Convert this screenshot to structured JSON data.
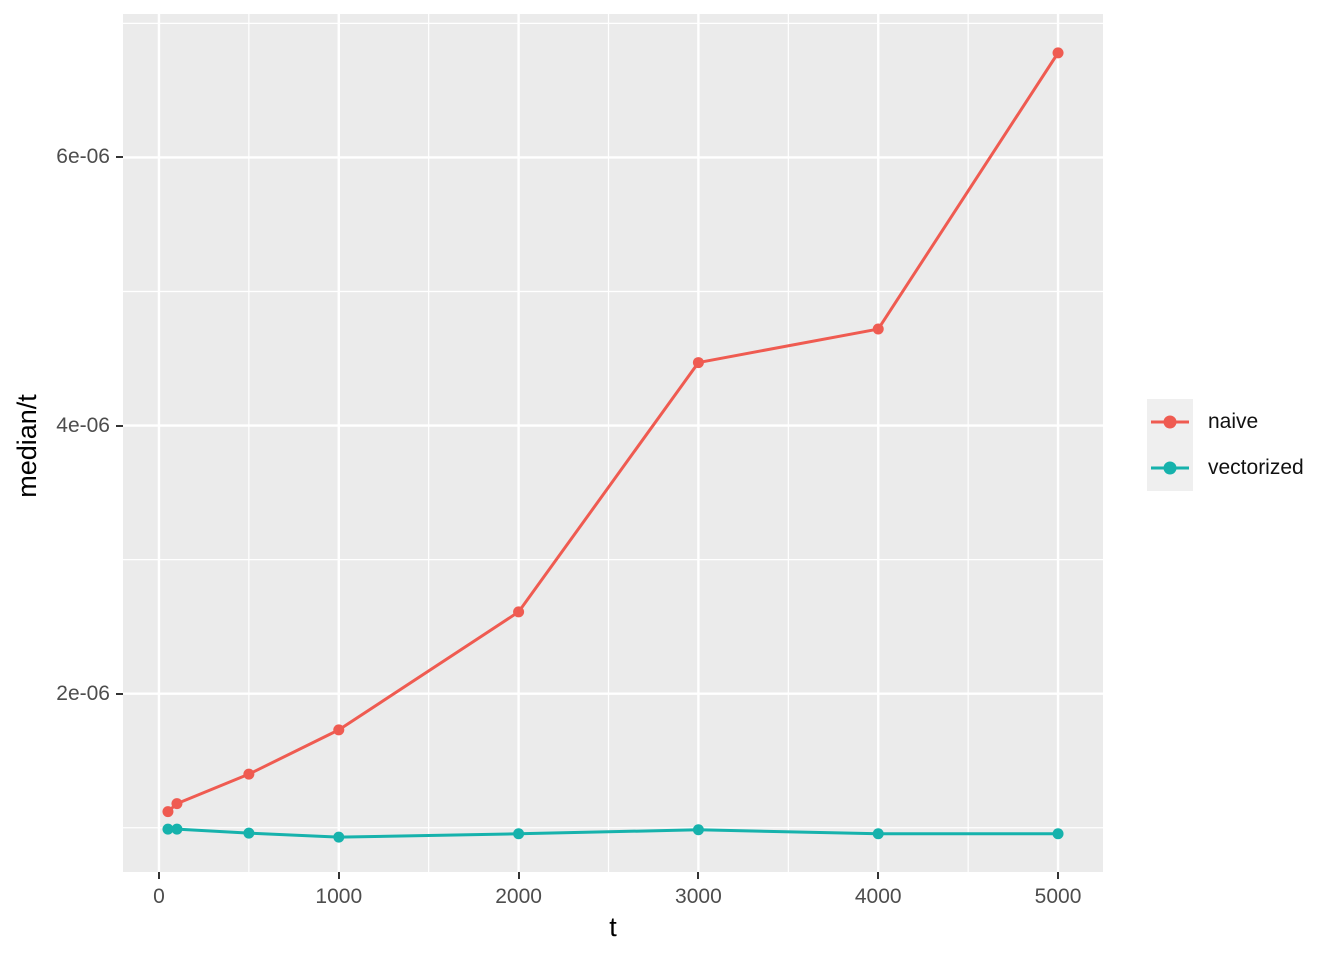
{
  "figure": {
    "background": "#FFFFFF",
    "panel_background": "#EBEBEB",
    "grid_color": "#FFFFFF",
    "axis_text_color": "#4D4D4D",
    "tick_color": "#333333"
  },
  "chart_data": {
    "type": "line",
    "title": "",
    "xlabel": "t",
    "ylabel": "median/t",
    "grid": true,
    "legend_position": "right",
    "xlim": [
      -200,
      5250
    ],
    "ylim": [
      6.7e-07,
      7.07e-06
    ],
    "x_major_ticks": [
      0,
      1000,
      2000,
      3000,
      4000,
      5000
    ],
    "x_tick_labels": [
      "0",
      "1000",
      "2000",
      "3000",
      "4000",
      "5000"
    ],
    "x_minor_ticks": [
      500,
      1500,
      2500,
      3500,
      4500
    ],
    "y_major_ticks": [
      2e-06,
      4e-06,
      6e-06
    ],
    "y_tick_labels": [
      "2e-06",
      "4e-06",
      "6e-06"
    ],
    "y_minor_ticks": [
      1e-06,
      3e-06,
      5e-06,
      7e-06
    ],
    "x": [
      50,
      100,
      500,
      1000,
      2000,
      3000,
      4000,
      5000
    ],
    "series": [
      {
        "name": "naive",
        "color": "#EF5B51",
        "values": [
          1.12e-06,
          1.18e-06,
          1.4e-06,
          1.73e-06,
          2.61e-06,
          4.47e-06,
          4.72e-06,
          6.78e-06
        ]
      },
      {
        "name": "vectorized",
        "color": "#16B2AC",
        "values": [
          9.9e-07,
          9.9e-07,
          9.6e-07,
          9.3e-07,
          9.55e-07,
          9.85e-07,
          9.55e-07,
          9.55e-07
        ]
      }
    ]
  },
  "legend": {
    "title": "",
    "entries": [
      {
        "label": "naive"
      },
      {
        "label": "vectorized"
      }
    ]
  }
}
